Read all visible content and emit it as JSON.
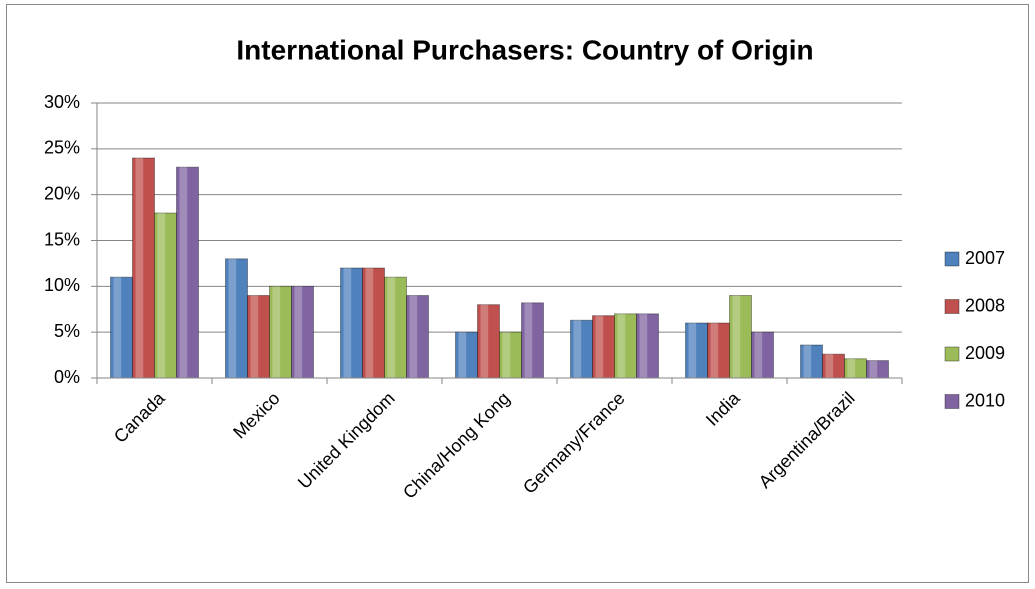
{
  "chart_data": {
    "type": "bar",
    "title": "International Purchasers:  Country of Origin",
    "categories": [
      "Canada",
      "Mexico",
      "United Kingdom",
      "China/Hong Kong",
      "Germany/France",
      "India",
      "Argentina/Brazil"
    ],
    "series": [
      {
        "name": "2007",
        "color": "#4f81bd",
        "values": [
          11,
          13,
          12,
          5,
          6.3,
          6,
          3.6
        ]
      },
      {
        "name": "2008",
        "color": "#c0504d",
        "values": [
          24,
          9,
          12,
          8,
          6.8,
          6,
          2.6
        ]
      },
      {
        "name": "2009",
        "color": "#9bbb59",
        "values": [
          18,
          10,
          11,
          5,
          7,
          9,
          2.1
        ]
      },
      {
        "name": "2010",
        "color": "#8064a2",
        "values": [
          23,
          10,
          9,
          8.2,
          7,
          5,
          1.9
        ]
      }
    ],
    "ylim": [
      0,
      30
    ],
    "yticks": [
      {
        "value": 0,
        "label": "0%"
      },
      {
        "value": 5,
        "label": "5%"
      },
      {
        "value": 10,
        "label": "10%"
      },
      {
        "value": 15,
        "label": "15%"
      },
      {
        "value": 20,
        "label": "20%"
      },
      {
        "value": 25,
        "label": "25%"
      },
      {
        "value": 30,
        "label": "30%"
      }
    ],
    "grid": true,
    "legend": "right"
  }
}
